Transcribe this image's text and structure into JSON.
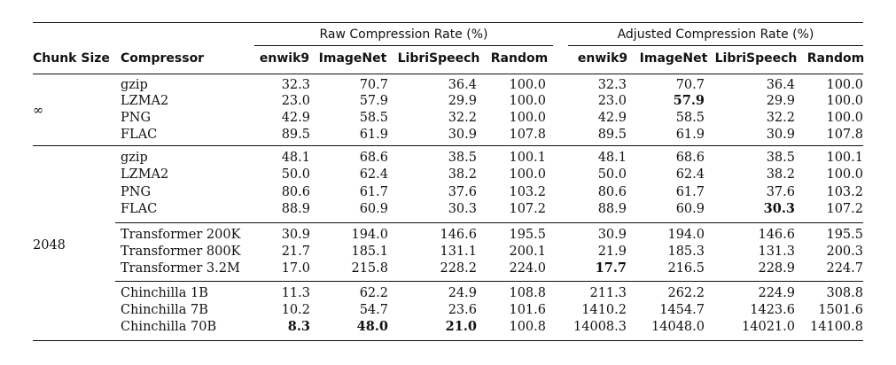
{
  "table": {
    "group_headers": {
      "raw": "Raw Compression Rate (%)",
      "adjusted": "Adjusted Compression Rate (%)"
    },
    "columns": {
      "chunk_size": "Chunk Size",
      "compressor": "Compressor",
      "raw": [
        "enwik9",
        "ImageNet",
        "LibriSpeech",
        "Random"
      ],
      "adjusted": [
        "enwik9",
        "ImageNet",
        "LibriSpeech",
        "Random"
      ]
    },
    "sections": [
      {
        "chunk_size": "∞",
        "blocks": [
          {
            "rows": [
              {
                "compressor": "gzip",
                "raw": [
                  "32.3",
                  "70.7",
                  "36.4",
                  "100.0"
                ],
                "adjusted": [
                  "32.3",
                  "70.7",
                  "36.4",
                  "100.0"
                ]
              },
              {
                "compressor": "LZMA2",
                "raw": [
                  "23.0",
                  "57.9",
                  "29.9",
                  "100.0"
                ],
                "adjusted": [
                  "23.0",
                  "57.9",
                  "29.9",
                  "100.0"
                ]
              },
              {
                "compressor": "PNG",
                "raw": [
                  "42.9",
                  "58.5",
                  "32.2",
                  "100.0"
                ],
                "adjusted": [
                  "42.9",
                  "58.5",
                  "32.2",
                  "100.0"
                ]
              },
              {
                "compressor": "FLAC",
                "raw": [
                  "89.5",
                  "61.9",
                  "30.9",
                  "107.8"
                ],
                "adjusted": [
                  "89.5",
                  "61.9",
                  "30.9",
                  "107.8"
                ]
              }
            ]
          }
        ]
      },
      {
        "chunk_size": "2048",
        "blocks": [
          {
            "rows": [
              {
                "compressor": "gzip",
                "raw": [
                  "48.1",
                  "68.6",
                  "38.5",
                  "100.1"
                ],
                "adjusted": [
                  "48.1",
                  "68.6",
                  "38.5",
                  "100.1"
                ]
              },
              {
                "compressor": "LZMA2",
                "raw": [
                  "50.0",
                  "62.4",
                  "38.2",
                  "100.0"
                ],
                "adjusted": [
                  "50.0",
                  "62.4",
                  "38.2",
                  "100.0"
                ]
              },
              {
                "compressor": "PNG",
                "raw": [
                  "80.6",
                  "61.7",
                  "37.6",
                  "103.2"
                ],
                "adjusted": [
                  "80.6",
                  "61.7",
                  "37.6",
                  "103.2"
                ]
              },
              {
                "compressor": "FLAC",
                "raw": [
                  "88.9",
                  "60.9",
                  "30.3",
                  "107.2"
                ],
                "adjusted": [
                  "88.9",
                  "60.9",
                  "30.3",
                  "107.2"
                ]
              }
            ]
          },
          {
            "rows": [
              {
                "compressor": "Transformer 200K",
                "raw": [
                  "30.9",
                  "194.0",
                  "146.6",
                  "195.5"
                ],
                "adjusted": [
                  "30.9",
                  "194.0",
                  "146.6",
                  "195.5"
                ]
              },
              {
                "compressor": "Transformer 800K",
                "raw": [
                  "21.7",
                  "185.1",
                  "131.1",
                  "200.1"
                ],
                "adjusted": [
                  "21.9",
                  "185.3",
                  "131.3",
                  "200.3"
                ]
              },
              {
                "compressor": "Transformer 3.2M",
                "raw": [
                  "17.0",
                  "215.8",
                  "228.2",
                  "224.0"
                ],
                "adjusted": [
                  "17.7",
                  "216.5",
                  "228.9",
                  "224.7"
                ]
              }
            ]
          },
          {
            "rows": [
              {
                "compressor": "Chinchilla 1B",
                "raw": [
                  "11.3",
                  "62.2",
                  "24.9",
                  "108.8"
                ],
                "adjusted": [
                  "211.3",
                  "262.2",
                  "224.9",
                  "308.8"
                ]
              },
              {
                "compressor": "Chinchilla 7B",
                "raw": [
                  "10.2",
                  "54.7",
                  "23.6",
                  "101.6"
                ],
                "adjusted": [
                  "1410.2",
                  "1454.7",
                  "1423.6",
                  "1501.6"
                ]
              },
              {
                "compressor": "Chinchilla 70B",
                "raw": [
                  "8.3",
                  "48.0",
                  "21.0",
                  "100.8"
                ],
                "adjusted": [
                  "14008.3",
                  "14048.0",
                  "14021.0",
                  "14100.8"
                ]
              }
            ]
          }
        ]
      }
    ],
    "bold_cells": [
      {
        "section": 0,
        "block": 0,
        "row": 1,
        "group": "adjusted",
        "col": 1
      },
      {
        "section": 1,
        "block": 0,
        "row": 3,
        "group": "adjusted",
        "col": 2
      },
      {
        "section": 1,
        "block": 1,
        "row": 2,
        "group": "adjusted",
        "col": 0
      },
      {
        "section": 1,
        "block": 2,
        "row": 2,
        "group": "raw",
        "col": 0
      },
      {
        "section": 1,
        "block": 2,
        "row": 2,
        "group": "raw",
        "col": 1
      },
      {
        "section": 1,
        "block": 2,
        "row": 2,
        "group": "raw",
        "col": 2
      }
    ]
  }
}
